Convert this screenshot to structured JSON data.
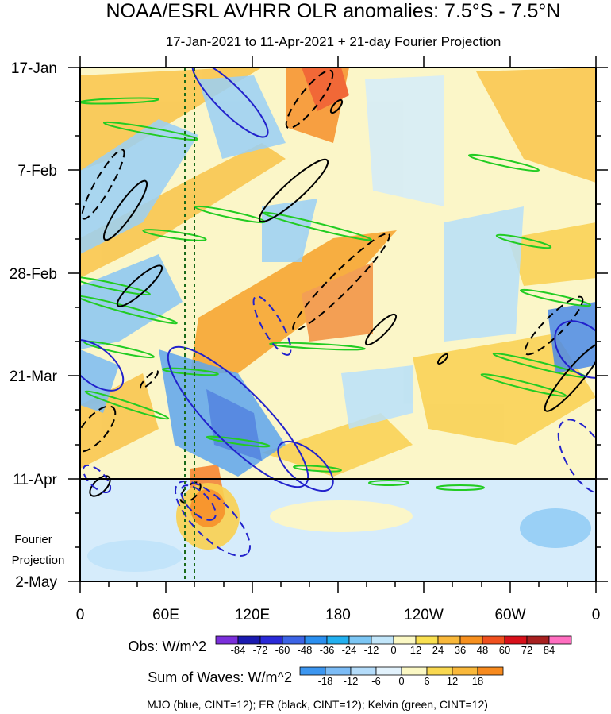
{
  "chart_data": {
    "type": "heatmap",
    "title": "NOAA/ESRL AVHRR OLR anomalies: 7.5°S - 7.5°N",
    "subtitle": "17-Jan-2021 to 11-Apr-2021 + 21-day Fourier Projection",
    "x_ticks": [
      "0",
      "60E",
      "120E",
      "180",
      "120W",
      "60W",
      "0"
    ],
    "y_ticks": [
      "17-Jan",
      "7-Feb",
      "28-Feb",
      "21-Mar",
      "11-Apr",
      "2-May"
    ],
    "projection_label_1": "Fourier",
    "projection_label_2": "Projection",
    "obs_colorbar": {
      "label": "Obs: W/m^2",
      "levels": [
        "-84",
        "-72",
        "-60",
        "-48",
        "-36",
        "-24",
        "-12",
        "0",
        "12",
        "24",
        "36",
        "48",
        "60",
        "72",
        "84"
      ],
      "colors": [
        "#7b2fdb",
        "#1a1ab0",
        "#2a2ad8",
        "#3c64e6",
        "#2a8ff0",
        "#22b0f0",
        "#7cc6f4",
        "#c2e6fa",
        "#fbf8c4",
        "#f9e050",
        "#f9b83a",
        "#f7901e",
        "#f0501e",
        "#d8101a",
        "#a82020",
        "#ff6ec0"
      ]
    },
    "waves_colorbar": {
      "label": "Sum of Waves: W/m^2",
      "levels": [
        "-18",
        "-12",
        "-6",
        "0",
        "6",
        "12",
        "18"
      ],
      "colors": [
        "#3c96f0",
        "#7cbcf6",
        "#b4dcfa",
        "#e2f2fc",
        "#fbf8c4",
        "#f9d850",
        "#f9b83a",
        "#f78a1e"
      ]
    },
    "footnote": "MJO (blue, CINT=12); ER (black, CINT=12); Kelvin (green, CINT=12)",
    "contour_colors": {
      "mjo": "#2222cc",
      "er": "#000000",
      "kelvin": "#22cc22",
      "reference_lines": "#1a6a1a"
    }
  }
}
